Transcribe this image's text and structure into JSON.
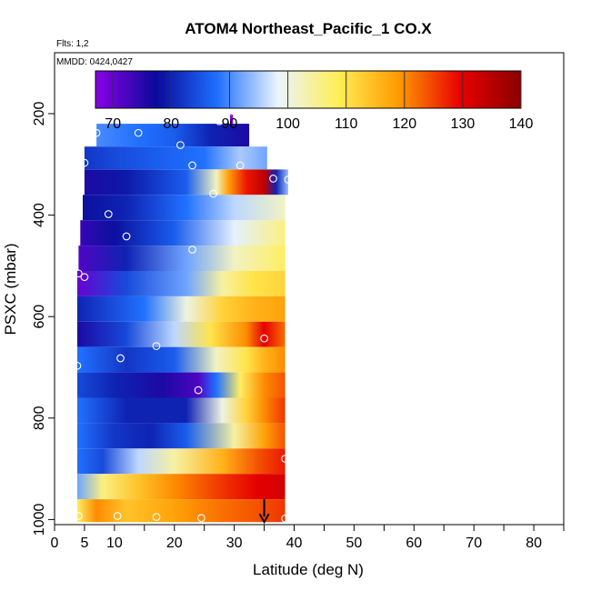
{
  "chart_data": {
    "type": "heatmap",
    "title": "ATOM4 Northeast_Pacific_1 CO.X",
    "flights_note": "Flts: 1,2",
    "date_note": "MMDD: 0424,0427",
    "xlabel": "Latitude (deg N)",
    "ylabel": "PSXC (mbar)",
    "xlim": [
      0,
      85
    ],
    "ylim": [
      1010,
      80
    ],
    "x_tick_labels": [
      "0",
      "5",
      "10",
      "20",
      "30",
      "40",
      "50",
      "60",
      "70",
      "80"
    ],
    "x_tick_values": [
      0,
      5,
      10,
      20,
      30,
      40,
      50,
      60,
      70,
      80
    ],
    "y_tick_labels": [
      "200",
      "400",
      "600",
      "800",
      "1000"
    ],
    "y_tick_values": [
      200,
      400,
      600,
      800,
      1000
    ],
    "colorbar": {
      "min": 67,
      "max": 140,
      "tick_labels": [
        "70",
        "80",
        "90",
        "100",
        "110",
        "120",
        "130",
        "140"
      ],
      "tick_values": [
        70,
        80,
        90,
        100,
        110,
        120,
        130,
        140
      ],
      "colors": [
        "#8a00e6",
        "#0a0a9a",
        "#1e6fff",
        "#eaf4ff",
        "#ffee55",
        "#ff9900",
        "#e80000",
        "#8a0000"
      ]
    },
    "rows": [
      {
        "p_top": 200,
        "p_bot": 220,
        "lat0": 29.3,
        "lat1": 29.8,
        "stops": [
          [
            29.3,
            67
          ]
        ]
      },
      {
        "p_top": 220,
        "p_bot": 265,
        "lat0": 7,
        "lat1": 32.5,
        "stops": [
          [
            7,
            90
          ],
          [
            14,
            88
          ],
          [
            20,
            86
          ],
          [
            26,
            80
          ],
          [
            32.5,
            76
          ]
        ]
      },
      {
        "p_top": 265,
        "p_bot": 310,
        "lat0": 5,
        "lat1": 35.5,
        "stops": [
          [
            5,
            82
          ],
          [
            10,
            84
          ],
          [
            17,
            86
          ],
          [
            25,
            88
          ],
          [
            31,
            95
          ],
          [
            35.5,
            92
          ]
        ]
      },
      {
        "p_top": 310,
        "p_bot": 360,
        "lat0": 5,
        "lat1": 39,
        "stops": [
          [
            5,
            76
          ],
          [
            12,
            79
          ],
          [
            22,
            86
          ],
          [
            27,
            102
          ],
          [
            29,
            118
          ],
          [
            32,
            128
          ],
          [
            35,
            134
          ],
          [
            37,
            80
          ],
          [
            39,
            94
          ]
        ]
      },
      {
        "p_top": 360,
        "p_bot": 410,
        "lat0": 4.7,
        "lat1": 38.5,
        "stops": [
          [
            4.7,
            78
          ],
          [
            12,
            80
          ],
          [
            22,
            88
          ],
          [
            30,
            96
          ],
          [
            38.5,
            102
          ]
        ]
      },
      {
        "p_top": 410,
        "p_bot": 460,
        "lat0": 4.3,
        "lat1": 38.5,
        "stops": [
          [
            4.3,
            74
          ],
          [
            10,
            78
          ],
          [
            20,
            86
          ],
          [
            30,
            98
          ],
          [
            38.5,
            106
          ]
        ]
      },
      {
        "p_top": 460,
        "p_bot": 510,
        "lat0": 4,
        "lat1": 38.5,
        "stops": [
          [
            4,
            72
          ],
          [
            12,
            80
          ],
          [
            22,
            92
          ],
          [
            30,
            102
          ],
          [
            38.5,
            108
          ]
        ]
      },
      {
        "p_top": 510,
        "p_bot": 560,
        "lat0": 3.8,
        "lat1": 38.5,
        "stops": [
          [
            3.8,
            70
          ],
          [
            12,
            84
          ],
          [
            22,
            92
          ],
          [
            28,
            104
          ],
          [
            33,
            110
          ],
          [
            38.5,
            112
          ]
        ]
      },
      {
        "p_top": 560,
        "p_bot": 610,
        "lat0": 3.8,
        "lat1": 38.5,
        "stops": [
          [
            3.8,
            80
          ],
          [
            15,
            88
          ],
          [
            22,
            100
          ],
          [
            28,
            112
          ],
          [
            33,
            116
          ],
          [
            38.5,
            118
          ]
        ]
      },
      {
        "p_top": 610,
        "p_bot": 660,
        "lat0": 3.8,
        "lat1": 38.5,
        "stops": [
          [
            3.8,
            76
          ],
          [
            12,
            84
          ],
          [
            20,
            96
          ],
          [
            26,
            110
          ],
          [
            32,
            120
          ],
          [
            35,
            130
          ],
          [
            38.5,
            122
          ]
        ]
      },
      {
        "p_top": 660,
        "p_bot": 710,
        "lat0": 3.8,
        "lat1": 38.5,
        "stops": [
          [
            3.8,
            88
          ],
          [
            12,
            82
          ],
          [
            20,
            86
          ],
          [
            27,
            102
          ],
          [
            32,
            110
          ],
          [
            35,
            116
          ],
          [
            38.5,
            120
          ]
        ]
      },
      {
        "p_top": 710,
        "p_bot": 760,
        "lat0": 3.8,
        "lat1": 38.5,
        "stops": [
          [
            3.8,
            84
          ],
          [
            10,
            80
          ],
          [
            18,
            76
          ],
          [
            24,
            72
          ],
          [
            27,
            88
          ],
          [
            31,
            108
          ],
          [
            35,
            120
          ],
          [
            38.5,
            124
          ]
        ]
      },
      {
        "p_top": 760,
        "p_bot": 810,
        "lat0": 3.8,
        "lat1": 38.5,
        "stops": [
          [
            3.8,
            88
          ],
          [
            12,
            80
          ],
          [
            22,
            80
          ],
          [
            28,
            100
          ],
          [
            32,
            112
          ],
          [
            35,
            120
          ],
          [
            38.5,
            126
          ]
        ]
      },
      {
        "p_top": 810,
        "p_bot": 860,
        "lat0": 3.8,
        "lat1": 38.5,
        "stops": [
          [
            3.8,
            88
          ],
          [
            10,
            82
          ],
          [
            16,
            80
          ],
          [
            22,
            86
          ],
          [
            30,
            104
          ],
          [
            35,
            118
          ],
          [
            38.5,
            124
          ]
        ]
      },
      {
        "p_top": 860,
        "p_bot": 910,
        "lat0": 3.8,
        "lat1": 38.5,
        "stops": [
          [
            3.8,
            88
          ],
          [
            8,
            84
          ],
          [
            14,
            96
          ],
          [
            20,
            104
          ],
          [
            28,
            116
          ],
          [
            34,
            124
          ],
          [
            38.5,
            128
          ]
        ]
      },
      {
        "p_top": 910,
        "p_bot": 960,
        "lat0": 3.8,
        "lat1": 38.5,
        "stops": [
          [
            3.8,
            92
          ],
          [
            8,
            106
          ],
          [
            14,
            114
          ],
          [
            20,
            120
          ],
          [
            28,
            126
          ],
          [
            34,
            130
          ],
          [
            38.5,
            132
          ]
        ]
      },
      {
        "p_top": 960,
        "p_bot": 1005,
        "lat0": 3.8,
        "lat1": 38.5,
        "stops": [
          [
            3.8,
            108
          ],
          [
            7,
            120
          ],
          [
            12,
            114
          ],
          [
            20,
            118
          ],
          [
            28,
            122
          ],
          [
            34,
            124
          ],
          [
            38.5,
            126
          ]
        ]
      }
    ],
    "sample_points": [
      {
        "lat": 29.5,
        "p": 195
      },
      {
        "lat": 27.5,
        "p": 215
      },
      {
        "lat": 7,
        "p": 238
      },
      {
        "lat": 14,
        "p": 238
      },
      {
        "lat": 21,
        "p": 262
      },
      {
        "lat": 5,
        "p": 297
      },
      {
        "lat": 23,
        "p": 302
      },
      {
        "lat": 31,
        "p": 302
      },
      {
        "lat": 36.5,
        "p": 328
      },
      {
        "lat": 39,
        "p": 330
      },
      {
        "lat": 26.5,
        "p": 358
      },
      {
        "lat": 9,
        "p": 398
      },
      {
        "lat": 12,
        "p": 442
      },
      {
        "lat": 23,
        "p": 468
      },
      {
        "lat": 4,
        "p": 515
      },
      {
        "lat": 5,
        "p": 522
      },
      {
        "lat": 17,
        "p": 658
      },
      {
        "lat": 35,
        "p": 643
      },
      {
        "lat": 11,
        "p": 682
      },
      {
        "lat": 3.8,
        "p": 697
      },
      {
        "lat": 24,
        "p": 745
      },
      {
        "lat": 38.5,
        "p": 880
      },
      {
        "lat": 4,
        "p": 993
      },
      {
        "lat": 10.5,
        "p": 993
      },
      {
        "lat": 17,
        "p": 995
      },
      {
        "lat": 24.5,
        "p": 997
      },
      {
        "lat": 38.5,
        "p": 998
      }
    ],
    "arrow_marker": {
      "lat": 35,
      "p_from": 960,
      "p_to": 1005
    }
  }
}
